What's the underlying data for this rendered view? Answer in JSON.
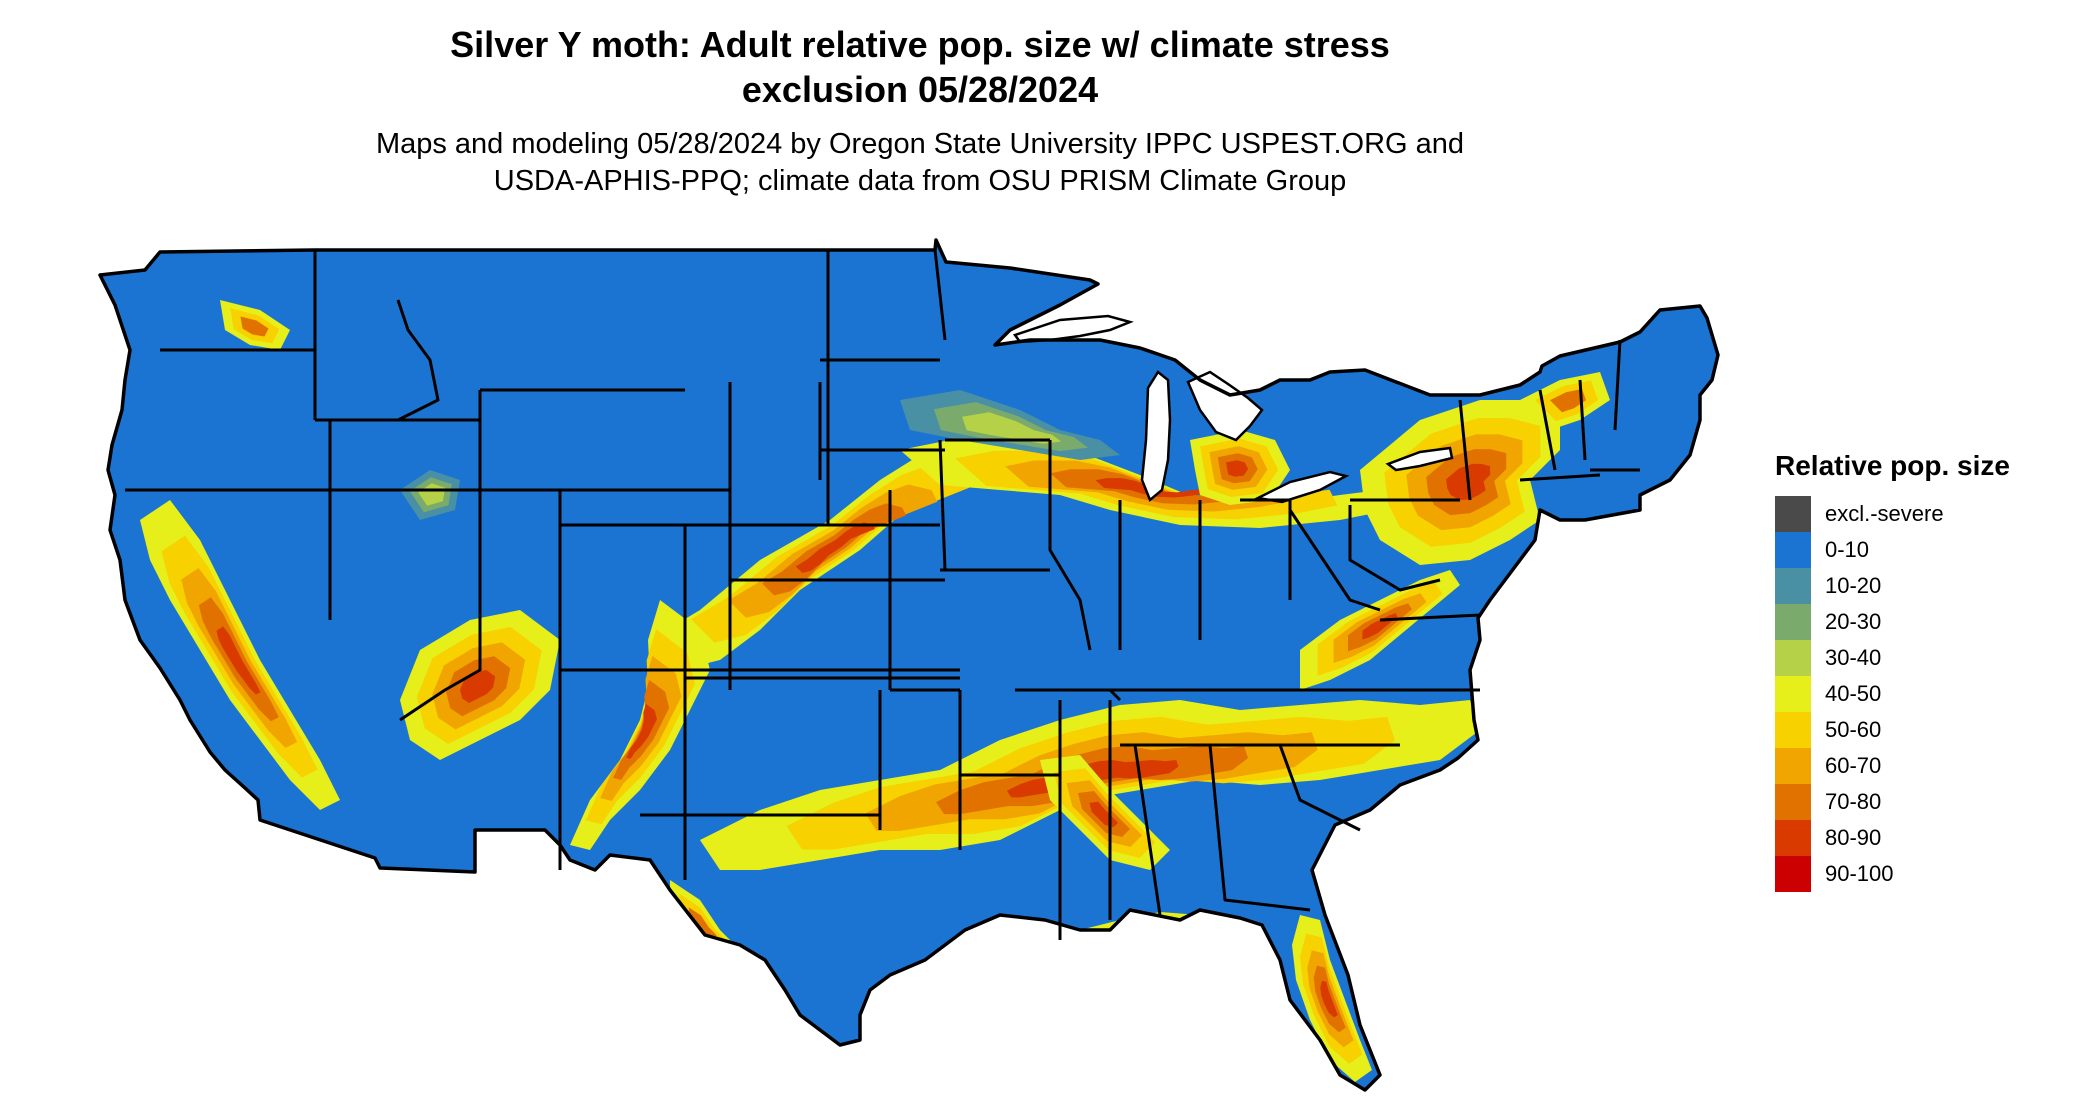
{
  "title": {
    "line1": "Silver Y moth: Adult relative pop. size w/ climate stress",
    "line2": "exclusion 05/28/2024"
  },
  "subtitle": {
    "line1": "Maps and modeling 05/28/2024 by Oregon State University IPPC USPEST.ORG and",
    "line2": "USDA-APHIS-PPQ; climate data from OSU PRISM Climate Group"
  },
  "legend": {
    "title": "Relative pop. size",
    "items": [
      {
        "label": "excl.-severe",
        "color": "#4a4a4a"
      },
      {
        "label": "0-10",
        "color": "#1b74d2"
      },
      {
        "label": "10-20",
        "color": "#4a90a4"
      },
      {
        "label": "20-30",
        "color": "#7aab6d"
      },
      {
        "label": "30-40",
        "color": "#b5d147"
      },
      {
        "label": "40-50",
        "color": "#e6ef1a"
      },
      {
        "label": "50-60",
        "color": "#f7d100"
      },
      {
        "label": "60-70",
        "color": "#f0a500"
      },
      {
        "label": "70-80",
        "color": "#e27200"
      },
      {
        "label": "80-90",
        "color": "#d83a00"
      },
      {
        "label": "90-100",
        "color": "#cc0000"
      }
    ]
  },
  "map": {
    "region": "Contiguous United States",
    "base_color": "#1b74d2",
    "border_color": "#000000"
  }
}
